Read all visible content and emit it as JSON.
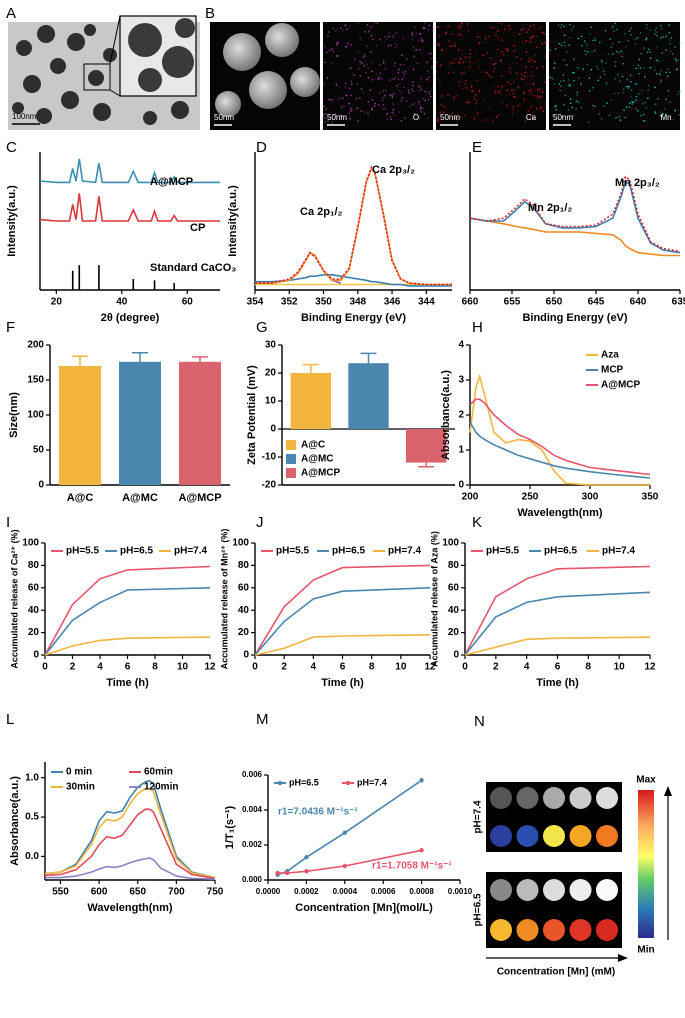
{
  "images": {
    "A": {
      "letter": "A",
      "scale_bar": "100nm"
    },
    "B": {
      "letter": "B",
      "tiles": [
        {
          "scale_bar": "50nm"
        },
        {
          "scale_bar": "50nm",
          "label": "O"
        },
        {
          "scale_bar": "50nm",
          "label": "Ca"
        },
        {
          "scale_bar": "50nm",
          "label": "Mn"
        }
      ]
    },
    "N": {
      "letter": "N",
      "rows": [
        "pH=7.4",
        "pH=6.5"
      ],
      "max": "Max",
      "min": "Min",
      "xlabel": "Concentration [Mn] (mM)"
    }
  },
  "chart_data": [
    {
      "letter": "C",
      "type": "line",
      "x": [
        15,
        20,
        24,
        25,
        26,
        27,
        28,
        32,
        33,
        34,
        42,
        43.5,
        45,
        49,
        50,
        51,
        55,
        56,
        57,
        62,
        70
      ],
      "series": [
        {
          "name": "A@MCP",
          "color": "#3b8fb0",
          "values": [
            79,
            78,
            78,
            88,
            79,
            95,
            79,
            78,
            92,
            78,
            78,
            86,
            78,
            78,
            85,
            78,
            78,
            82,
            78,
            78,
            78
          ]
        },
        {
          "name": "CP",
          "color": "#d9363e",
          "values": [
            51,
            50,
            50,
            62,
            51,
            70,
            50,
            50,
            68,
            50,
            50,
            58,
            50,
            50,
            57,
            50,
            50,
            54,
            50,
            50,
            50
          ]
        },
        {
          "name": "Standard CaCO₃",
          "color": "#000000",
          "style": "stick",
          "values": [
            null,
            null,
            null,
            14,
            null,
            18,
            null,
            null,
            18,
            null,
            null,
            8,
            null,
            null,
            7,
            null,
            null,
            5,
            null,
            null,
            null
          ]
        }
      ],
      "xlim": [
        15,
        70
      ],
      "ylim": [
        0,
        100
      ],
      "xticks": [
        20,
        40,
        60
      ],
      "xlabel": "2θ (degree)",
      "ylabel": "Intensity(a.u.)",
      "legend": "inline"
    },
    {
      "letter": "D",
      "type": "line",
      "x": [
        354,
        353,
        352,
        351.5,
        351,
        350.8,
        350.5,
        350,
        349.5,
        349,
        348.5,
        348,
        347.5,
        347.2,
        347,
        346.5,
        346,
        345.5,
        345,
        344,
        342.5
      ],
      "series": [
        {
          "color": "#f5c242",
          "values": [
            4,
            4,
            4,
            4,
            4,
            4,
            4,
            4,
            4,
            4,
            4,
            4,
            4,
            4,
            4,
            4,
            4,
            4,
            4,
            4,
            4
          ]
        },
        {
          "color": "#3b7fb0",
          "values": [
            6,
            6,
            7,
            8,
            9,
            10,
            10,
            11,
            11,
            10,
            9,
            8,
            7,
            6,
            6,
            5,
            4,
            4,
            3,
            3,
            3
          ]
        },
        {
          "color": "#8a5fa8",
          "values": [
            5,
            5,
            7,
            12,
            22,
            27,
            25,
            14,
            7,
            5,
            null,
            null,
            null,
            null,
            null,
            null,
            null,
            null,
            null,
            null,
            null
          ]
        },
        {
          "color": "#f08a24",
          "values": [
            5,
            5,
            7,
            12,
            22,
            27,
            25,
            14,
            7,
            7,
            15,
            45,
            78,
            88,
            85,
            55,
            22,
            8,
            5,
            4,
            4
          ]
        },
        {
          "color": "#d9262e",
          "style": "dotted",
          "values": [
            5,
            5,
            8,
            13,
            23,
            27,
            24,
            14,
            8,
            8,
            16,
            46,
            79,
            89,
            85,
            54,
            21,
            8,
            5,
            4,
            4
          ]
        }
      ],
      "xlim": [
        354,
        342.5
      ],
      "ylim": [
        0,
        100
      ],
      "xticks": [
        354,
        352,
        350,
        348,
        346,
        344
      ],
      "xlabel": "Binding Energy (eV)",
      "ylabel": "Intensity(a.u.)",
      "annotations": [
        "Ca 2p₁/₂",
        "Ca 2p₃/₂"
      ]
    },
    {
      "letter": "E",
      "type": "line",
      "x": [
        660,
        658,
        656,
        654.5,
        653.5,
        652.5,
        651,
        649,
        647,
        645,
        643,
        642,
        641.5,
        641,
        640,
        638.5,
        637,
        635
      ],
      "series": [
        {
          "color": "#f08a24",
          "values": [
            52,
            50,
            48,
            46,
            45,
            44,
            42,
            42,
            42,
            41,
            40,
            36,
            32,
            30,
            27,
            26,
            25,
            25
          ]
        },
        {
          "color": "#3b7fb0",
          "values": [
            52,
            50,
            50,
            58,
            64,
            60,
            48,
            45,
            45,
            46,
            52,
            68,
            78,
            77,
            52,
            34,
            29,
            27
          ]
        },
        {
          "color": "#d9262e",
          "style": "dotted",
          "values": [
            52,
            50,
            52,
            60,
            66,
            62,
            48,
            46,
            46,
            47,
            55,
            70,
            82,
            80,
            55,
            35,
            30,
            28
          ]
        }
      ],
      "xlim": [
        660,
        635
      ],
      "ylim": [
        0,
        100
      ],
      "xticks": [
        660,
        655,
        650,
        645,
        640,
        635
      ],
      "xlabel": "Binding Energy (eV)",
      "annotations": [
        "Mn 2p₁/₂",
        "Mn 2p₃/₂"
      ]
    },
    {
      "letter": "F",
      "type": "bar",
      "categories": [
        "A@C",
        "A@MC",
        "A@MCP"
      ],
      "values": [
        170,
        176,
        176
      ],
      "errors": [
        14,
        13,
        7
      ],
      "colors": [
        "#f2b53e",
        "#4a86ae",
        "#d9646e"
      ],
      "ylim": [
        0,
        200
      ],
      "yticks": [
        0,
        50,
        100,
        150,
        200
      ],
      "ylabel": "Size(nm)"
    },
    {
      "letter": "G",
      "type": "bar",
      "categories": [
        "A@C",
        "A@MC",
        "A@MCP"
      ],
      "values": [
        20,
        23.5,
        -12
      ],
      "errors": [
        3,
        3.5,
        1.5
      ],
      "colors": [
        "#f2b53e",
        "#4a86ae",
        "#d9646e"
      ],
      "ylim": [
        -20,
        30
      ],
      "yticks": [
        -20,
        -10,
        0,
        10,
        20,
        30
      ],
      "ylabel": "Zeta Potential (mV)",
      "legend": "lower left"
    },
    {
      "letter": "H",
      "type": "line",
      "x": [
        200,
        205,
        208,
        212,
        220,
        230,
        240,
        250,
        260,
        270,
        280,
        300,
        320,
        350
      ],
      "series": [
        {
          "name": "Aza",
          "color": "#f2b53e",
          "values": [
            1.5,
            2.8,
            3.1,
            2.6,
            1.5,
            1.2,
            1.3,
            1.25,
            1.0,
            0.4,
            0.05,
            0,
            0,
            0
          ]
        },
        {
          "name": "MCP",
          "color": "#4a86ae",
          "values": [
            1.8,
            1.5,
            1.4,
            1.3,
            1.15,
            1.0,
            0.85,
            0.75,
            0.65,
            0.55,
            0.48,
            0.38,
            0.3,
            0.2
          ]
        },
        {
          "name": "A@MCP",
          "color": "#e8546a",
          "values": [
            2.3,
            2.45,
            2.45,
            2.35,
            2.0,
            1.7,
            1.45,
            1.3,
            1.1,
            0.85,
            0.7,
            0.5,
            0.42,
            0.3
          ]
        }
      ],
      "xlim": [
        200,
        350
      ],
      "ylim": [
        0,
        4
      ],
      "xticks": [
        200,
        250,
        300,
        350
      ],
      "yticks": [
        0,
        1,
        2,
        3,
        4
      ],
      "xlabel": "Wavelength(nm)",
      "ylabel": "Absorbance(a.u.)",
      "legend": "upper right"
    },
    {
      "letter": "I",
      "type": "line",
      "x": [
        0,
        2,
        4,
        6,
        12
      ],
      "series": [
        {
          "name": "pH=5.5",
          "color": "#e8546a",
          "values": [
            0,
            45,
            68,
            76,
            79
          ]
        },
        {
          "name": "pH=6.5",
          "color": "#4a86ae",
          "values": [
            0,
            31,
            47,
            58,
            60
          ]
        },
        {
          "name": "pH=7.4",
          "color": "#f2b53e",
          "values": [
            0,
            8,
            13,
            15,
            16
          ]
        }
      ],
      "xlim": [
        0,
        12
      ],
      "ylim": [
        0,
        100
      ],
      "xticks": [
        0,
        2,
        4,
        6,
        8,
        10,
        12
      ],
      "yticks": [
        0,
        20,
        40,
        60,
        80,
        100
      ],
      "xlabel": "Time (h)",
      "ylabel": "Accumulated release of Ca²⁺ (%)",
      "legend": "top"
    },
    {
      "letter": "J",
      "type": "line",
      "x": [
        0,
        2,
        4,
        6,
        12
      ],
      "series": [
        {
          "name": "pH=5.5",
          "color": "#e8546a",
          "values": [
            0,
            43,
            67,
            78,
            80
          ]
        },
        {
          "name": "pH=6.5",
          "color": "#4a86ae",
          "values": [
            0,
            30,
            50,
            57,
            60
          ]
        },
        {
          "name": "pH=7.4",
          "color": "#f2b53e",
          "values": [
            0,
            6,
            16,
            17,
            18
          ]
        }
      ],
      "xlim": [
        0,
        12
      ],
      "ylim": [
        0,
        100
      ],
      "xticks": [
        0,
        2,
        4,
        6,
        8,
        10,
        12
      ],
      "yticks": [
        0,
        20,
        40,
        60,
        80,
        100
      ],
      "xlabel": "Time (h)",
      "ylabel": "Accumulated release of Mn²⁺ (%)",
      "legend": "top"
    },
    {
      "letter": "K",
      "type": "line",
      "x": [
        0,
        2,
        4,
        6,
        12
      ],
      "series": [
        {
          "name": "pH=5.5",
          "color": "#e8546a",
          "values": [
            0,
            52,
            68,
            77,
            79
          ]
        },
        {
          "name": "pH=6.5",
          "color": "#4a86ae",
          "values": [
            0,
            34,
            47,
            52,
            56
          ]
        },
        {
          "name": "pH=7.4",
          "color": "#f2b53e",
          "values": [
            0,
            7,
            14,
            15,
            16
          ]
        }
      ],
      "xlim": [
        0,
        12
      ],
      "ylim": [
        0,
        100
      ],
      "xticks": [
        0,
        2,
        4,
        6,
        8,
        10,
        12
      ],
      "yticks": [
        0,
        20,
        40,
        60,
        80,
        100
      ],
      "xlabel": "Time (h)",
      "ylabel": "Accumulated release of Aza (%)",
      "legend": "top"
    },
    {
      "letter": "L",
      "type": "line",
      "x": [
        530,
        550,
        570,
        590,
        600,
        610,
        620,
        630,
        640,
        650,
        660,
        665,
        670,
        680,
        700,
        720,
        750
      ],
      "series": [
        {
          "name": "0 min",
          "color": "#3d7fb0",
          "values": [
            -0.22,
            -0.2,
            -0.1,
            0.2,
            0.45,
            0.57,
            0.55,
            0.58,
            0.75,
            0.88,
            0.95,
            0.96,
            0.93,
            0.6,
            0.0,
            -0.2,
            -0.27
          ]
        },
        {
          "name": "30min",
          "color": "#f2b53e",
          "values": [
            -0.22,
            -0.2,
            -0.12,
            0.15,
            0.37,
            0.47,
            0.45,
            0.5,
            0.67,
            0.8,
            0.86,
            0.86,
            0.83,
            0.53,
            -0.03,
            -0.21,
            -0.27
          ]
        },
        {
          "name": "60min",
          "color": "#e04a5a",
          "values": [
            -0.24,
            -0.23,
            -0.17,
            0.0,
            0.15,
            0.25,
            0.23,
            0.27,
            0.4,
            0.53,
            0.6,
            0.6,
            0.57,
            0.35,
            -0.1,
            -0.23,
            -0.28
          ]
        },
        {
          "name": "120min",
          "color": "#8c84c8",
          "values": [
            -0.27,
            -0.27,
            -0.25,
            -0.2,
            -0.16,
            -0.13,
            -0.14,
            -0.12,
            -0.08,
            -0.05,
            -0.03,
            -0.02,
            -0.04,
            -0.15,
            -0.25,
            -0.28,
            -0.29
          ]
        }
      ],
      "xlim": [
        530,
        750
      ],
      "ylim": [
        -0.3,
        1.2
      ],
      "xticks": [
        550,
        600,
        650,
        700,
        750
      ],
      "yticks": [
        {
          "value": 0,
          "label": "0.0"
        },
        0.5,
        {
          "value": 1,
          "label": "1.0"
        }
      ],
      "xlabel": "Wavelength(nm)",
      "ylabel": "Absorbance(a.u.)",
      "legend": "upper left",
      "legend_columns": 2
    },
    {
      "letter": "M",
      "type": "scatter",
      "x": [
        5e-05,
        0.0001,
        0.0002,
        0.0004,
        0.0008
      ],
      "series": [
        {
          "name": "pH=6.5",
          "color": "#4a86ae",
          "values": [
            0.0003,
            0.0005,
            0.0013,
            0.0027,
            0.0057
          ]
        },
        {
          "name": "pH=7.4",
          "color": "#e8546a",
          "values": [
            0.0004,
            0.0004,
            0.0005,
            0.0008,
            0.0017
          ]
        }
      ],
      "xlim": [
        0,
        0.001
      ],
      "ylim": [
        0,
        0.006
      ],
      "xticks": [
        {
          "value": 0,
          "label": "0.0000"
        },
        0.0002,
        0.0004,
        0.0006,
        0.0008,
        {
          "value": 0.001,
          "label": "0.0010"
        }
      ],
      "yticks": [
        {
          "value": 0,
          "label": "0.000"
        },
        0.002,
        0.004,
        0.006
      ],
      "xlabel": "Concentration [Mn](mol/L)",
      "ylabel": "1/T₁(s⁻¹)",
      "legend": "top",
      "annotations": [
        "r1=7.0436 M⁻¹s⁻¹",
        "r1=1.7058 M⁻¹s⁻¹"
      ]
    }
  ]
}
